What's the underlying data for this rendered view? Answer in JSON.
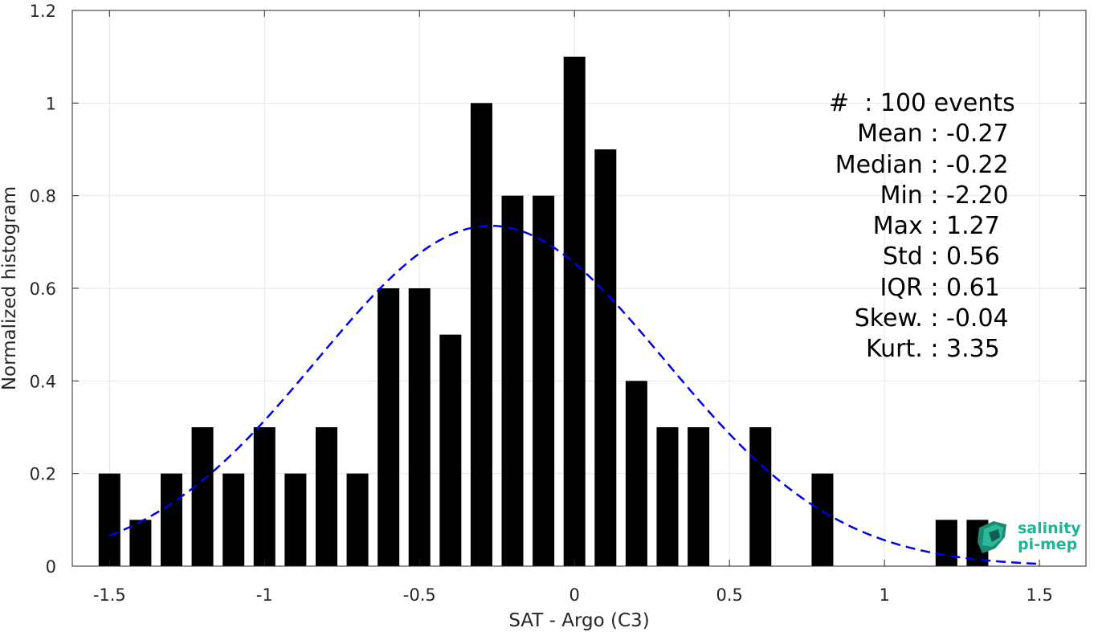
{
  "chart_data": {
    "type": "bar",
    "xlabel": "SAT - Argo (C3)",
    "ylabel": "Normalized histogram",
    "xlim": [
      -1.62,
      1.65
    ],
    "ylim": [
      0,
      1.2
    ],
    "bar_width": 0.07,
    "grid": true,
    "xticks": [
      -1.5,
      -1,
      -0.5,
      0,
      0.5,
      1,
      1.5
    ],
    "xtick_labels": [
      "-1.5",
      "-1",
      "-0.5",
      "0",
      "0.5",
      "1",
      "1.5"
    ],
    "yticks": [
      0,
      0.2,
      0.4,
      0.6,
      0.8,
      1,
      1.2
    ],
    "ytick_labels": [
      "0",
      "0.2",
      "0.4",
      "0.6",
      "0.8",
      "1",
      "1.2"
    ],
    "bars": {
      "x": [
        -1.5,
        -1.4,
        -1.3,
        -1.2,
        -1.1,
        -1.0,
        -0.9,
        -0.8,
        -0.7,
        -0.6,
        -0.5,
        -0.4,
        -0.3,
        -0.2,
        -0.1,
        0.0,
        0.1,
        0.2,
        0.3,
        0.4,
        0.5,
        0.6,
        0.7,
        0.8,
        0.9,
        1.0,
        1.1,
        1.2,
        1.3
      ],
      "values": [
        0.2,
        0.1,
        0.2,
        0.3,
        0.2,
        0.3,
        0.2,
        0.3,
        0.2,
        0.6,
        0.6,
        0.5,
        1.0,
        0.8,
        0.8,
        1.1,
        0.9,
        0.4,
        0.3,
        0.3,
        0.0,
        0.3,
        0.0,
        0.2,
        0.0,
        0.0,
        0.0,
        0.1,
        0.1
      ],
      "color": "#000000"
    },
    "fit_curve": {
      "style": "dashed",
      "color": "#0000e6",
      "mean": -0.27,
      "std": 0.56,
      "peak": 0.735,
      "x_range": [
        -1.5,
        1.5
      ]
    }
  },
  "stats": {
    "count": "#  : 100 events",
    "rows": [
      {
        "label": "Mean : ",
        "value": "-0.27"
      },
      {
        "label": "Median : ",
        "value": "-0.22"
      },
      {
        "label": "Min : ",
        "value": "-2.20"
      },
      {
        "label": "Max : ",
        "value": "1.27"
      },
      {
        "label": "Std : ",
        "value": "0.56"
      },
      {
        "label": "IQR : ",
        "value": "0.61"
      },
      {
        "label": "Skew. : ",
        "value": "-0.04"
      },
      {
        "label": "Kurt. : ",
        "value": "3.35"
      }
    ]
  },
  "logo": {
    "line1": "salinity",
    "line2": "pi-mep",
    "color": "#1bb597"
  }
}
